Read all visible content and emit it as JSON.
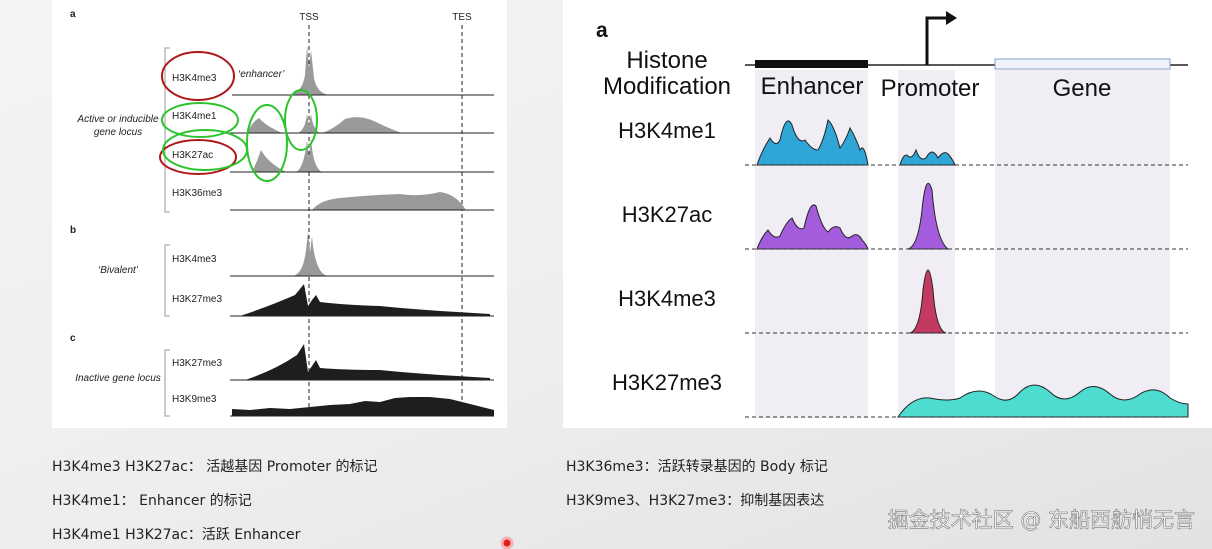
{
  "left_figure": {
    "tss": "TSS",
    "tes": "TES",
    "enhancer_note": "‘enhancer’",
    "panels": [
      {
        "label": "a",
        "group": [
          "Active or inducible",
          "gene locus"
        ],
        "tracks": [
          "H3K4me3",
          "H3K4me1",
          "H3K27ac",
          "H3K36me3"
        ]
      },
      {
        "label": "b",
        "group": [
          "‘Bivalent’"
        ],
        "tracks": [
          "H3K4me3",
          "H3K27me3"
        ]
      },
      {
        "label": "c",
        "group": [
          "Inactive gene locus"
        ],
        "tracks": [
          "H3K27me3",
          "H3K9me3"
        ]
      }
    ]
  },
  "right_figure": {
    "panel_label": "a",
    "header": [
      "Histone",
      "Modification"
    ],
    "regions": [
      "Enhancer",
      "Promoter",
      "Gene"
    ],
    "tracks": [
      "H3K4me1",
      "H3K27ac",
      "H3K4me3",
      "H3K27me3"
    ]
  },
  "notes": {
    "left": [
      "H3K4me3 H3K27ac： 活越基因 Promoter 的标记",
      "H3K4me1： Enhancer 的标记",
      "H3K4me1 H3K27ac：活跃 Enhancer"
    ],
    "right": [
      "H3K36me3：活跃转录基因的 Body 标记",
      "H3K9me3、H3K27me3：抑制基因表达"
    ]
  },
  "watermark": "掘金技术社区 @ 东船西舫悄无言"
}
